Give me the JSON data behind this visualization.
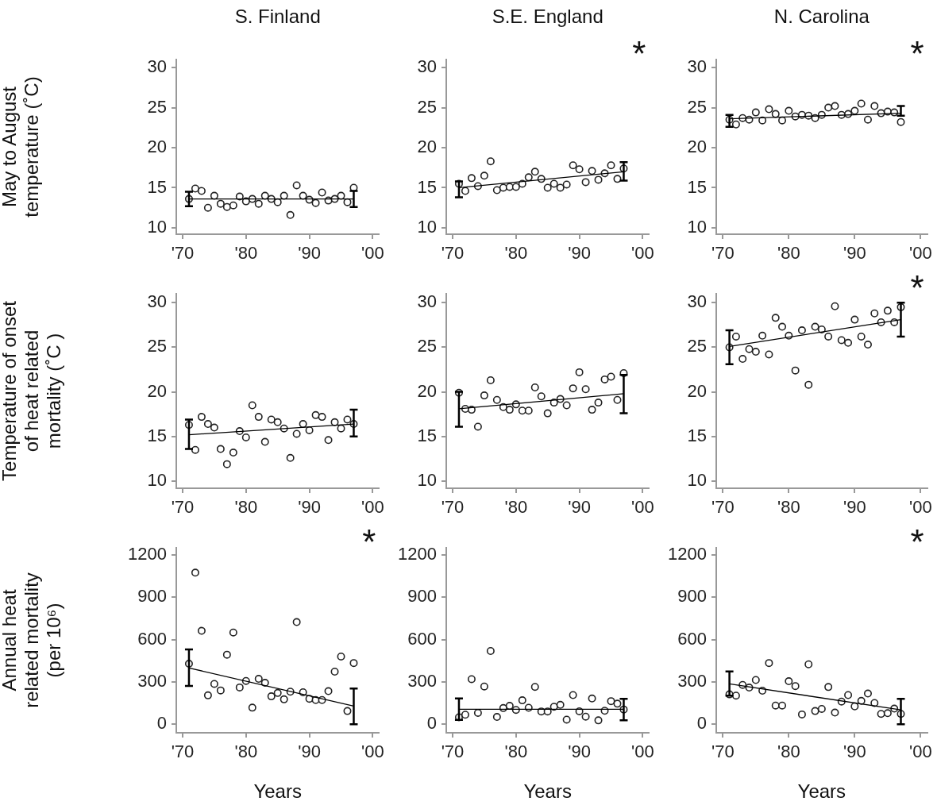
{
  "chart_data": [
    {
      "type": "scatter",
      "title": "S. Finland",
      "ylabel": "May to August\ntemperature (˚C)",
      "x": [
        1971,
        1972,
        1973,
        1974,
        1975,
        1976,
        1977,
        1978,
        1979,
        1980,
        1981,
        1982,
        1983,
        1984,
        1985,
        1986,
        1987,
        1988,
        1989,
        1990,
        1991,
        1992,
        1993,
        1994,
        1995,
        1996,
        1997
      ],
      "series": [
        {
          "type": "scatter",
          "color": "#222222",
          "marker": "circle",
          "values": [
            13.6,
            14.9,
            14.6,
            12.5,
            14.0,
            13.0,
            12.6,
            12.8,
            13.9,
            13.3,
            13.6,
            13.0,
            14.0,
            13.6,
            13.2,
            14.0,
            11.6,
            15.3,
            14.0,
            13.5,
            13.1,
            14.4,
            13.4,
            13.6,
            14.0,
            13.2,
            15.0
          ]
        },
        {
          "type": "line",
          "color": "#000000",
          "marker": "none",
          "values": [
            13.6,
            null,
            null,
            null,
            null,
            null,
            null,
            null,
            null,
            null,
            null,
            null,
            null,
            null,
            null,
            null,
            null,
            null,
            null,
            null,
            null,
            null,
            null,
            null,
            null,
            null,
            13.6
          ],
          "errors": [
            [
              12.7,
              14.5
            ],
            null,
            null,
            null,
            null,
            null,
            null,
            null,
            null,
            null,
            null,
            null,
            null,
            null,
            null,
            null,
            null,
            null,
            null,
            null,
            null,
            null,
            null,
            null,
            null,
            null,
            [
              12.6,
              14.6
            ]
          ]
        }
      ],
      "xlim": [
        1969,
        2001
      ],
      "xticks": [
        {
          "value": 1970,
          "label": "'70"
        },
        {
          "value": 1980,
          "label": "'80"
        },
        {
          "value": 1990,
          "label": "'90"
        },
        {
          "value": 2000,
          "label": "'00"
        }
      ],
      "ylim": [
        9.2,
        31
      ],
      "yticks": [
        10,
        15,
        20,
        25,
        30
      ]
    },
    {
      "type": "scatter",
      "title": "S.E. England",
      "annotations": [
        "*"
      ],
      "x": [
        1971,
        1972,
        1973,
        1974,
        1975,
        1976,
        1977,
        1978,
        1979,
        1980,
        1981,
        1982,
        1983,
        1984,
        1985,
        1986,
        1987,
        1988,
        1989,
        1990,
        1991,
        1992,
        1993,
        1994,
        1995,
        1996,
        1997
      ],
      "series": [
        {
          "type": "scatter",
          "color": "#222222",
          "marker": "circle",
          "values": [
            15.5,
            14.6,
            16.2,
            15.2,
            16.5,
            18.3,
            14.7,
            15.0,
            15.1,
            15.1,
            15.5,
            16.3,
            17.0,
            16.1,
            15.0,
            15.5,
            15.0,
            15.4,
            17.8,
            17.3,
            15.7,
            17.1,
            16.0,
            16.8,
            17.8,
            16.1,
            17.4
          ]
        },
        {
          "type": "line",
          "color": "#000000",
          "marker": "none",
          "values": [
            15.0,
            null,
            null,
            null,
            null,
            null,
            null,
            null,
            null,
            null,
            null,
            null,
            null,
            null,
            null,
            null,
            null,
            null,
            null,
            null,
            null,
            null,
            null,
            null,
            null,
            null,
            17.0
          ],
          "errors": [
            [
              13.8,
              15.8
            ],
            null,
            null,
            null,
            null,
            null,
            null,
            null,
            null,
            null,
            null,
            null,
            null,
            null,
            null,
            null,
            null,
            null,
            null,
            null,
            null,
            null,
            null,
            null,
            null,
            null,
            [
              15.9,
              18.2
            ]
          ]
        }
      ],
      "xlim": [
        1969,
        2001
      ],
      "xticks": [
        {
          "value": 1970,
          "label": "'70"
        },
        {
          "value": 1980,
          "label": "'80"
        },
        {
          "value": 1990,
          "label": "'90"
        },
        {
          "value": 2000,
          "label": "'00"
        }
      ],
      "ylim": [
        9.2,
        31
      ],
      "yticks": [
        10,
        15,
        20,
        25,
        30
      ]
    },
    {
      "type": "scatter",
      "title": "N. Carolina",
      "annotations": [
        "*"
      ],
      "x": [
        1971,
        1972,
        1973,
        1974,
        1975,
        1976,
        1977,
        1978,
        1979,
        1980,
        1981,
        1982,
        1983,
        1984,
        1985,
        1986,
        1987,
        1988,
        1989,
        1990,
        1991,
        1992,
        1993,
        1994,
        1995,
        1996,
        1997
      ],
      "series": [
        {
          "type": "scatter",
          "color": "#222222",
          "marker": "circle",
          "values": [
            23.5,
            22.9,
            23.7,
            23.5,
            24.4,
            23.4,
            24.8,
            24.2,
            23.4,
            24.6,
            23.9,
            24.1,
            24.0,
            23.7,
            24.1,
            25.0,
            25.2,
            24.1,
            24.2,
            24.6,
            25.5,
            23.5,
            25.2,
            24.3,
            24.5,
            24.4,
            23.2
          ]
        },
        {
          "type": "line",
          "color": "#000000",
          "marker": "none",
          "values": [
            23.6,
            null,
            null,
            null,
            null,
            null,
            null,
            null,
            null,
            null,
            null,
            null,
            null,
            null,
            null,
            null,
            null,
            null,
            null,
            null,
            null,
            null,
            null,
            null,
            null,
            null,
            24.3
          ],
          "errors": [
            [
              22.6,
              24.1
            ],
            null,
            null,
            null,
            null,
            null,
            null,
            null,
            null,
            null,
            null,
            null,
            null,
            null,
            null,
            null,
            null,
            null,
            null,
            null,
            null,
            null,
            null,
            null,
            null,
            null,
            [
              24.0,
              25.2
            ]
          ]
        }
      ],
      "xlim": [
        1969,
        2001
      ],
      "xticks": [
        {
          "value": 1970,
          "label": "'70"
        },
        {
          "value": 1980,
          "label": "'80"
        },
        {
          "value": 1990,
          "label": "'90"
        },
        {
          "value": 2000,
          "label": "'00"
        }
      ],
      "ylim": [
        9.2,
        31
      ],
      "yticks": [
        10,
        15,
        20,
        25,
        30
      ]
    },
    {
      "type": "scatter",
      "ylabel": "Temperature of onset\nof heat related\nmortality (˚C )",
      "x": [
        1971,
        1972,
        1973,
        1974,
        1975,
        1976,
        1977,
        1978,
        1979,
        1980,
        1981,
        1982,
        1983,
        1984,
        1985,
        1986,
        1987,
        1988,
        1989,
        1990,
        1991,
        1992,
        1993,
        1994,
        1995,
        1996,
        1997
      ],
      "series": [
        {
          "type": "scatter",
          "color": "#222222",
          "marker": "circle",
          "values": [
            16.3,
            13.5,
            17.2,
            16.4,
            16.0,
            13.6,
            11.9,
            13.2,
            15.6,
            14.9,
            18.5,
            17.2,
            14.4,
            16.9,
            16.6,
            15.9,
            12.6,
            15.3,
            16.4,
            15.7,
            17.4,
            17.2,
            14.6,
            16.6,
            15.9,
            16.9,
            16.4
          ]
        },
        {
          "type": "line",
          "color": "#000000",
          "marker": "none",
          "values": [
            15.2,
            null,
            null,
            null,
            null,
            null,
            null,
            null,
            null,
            null,
            null,
            null,
            null,
            null,
            null,
            null,
            null,
            null,
            null,
            null,
            null,
            null,
            null,
            null,
            null,
            null,
            16.4
          ],
          "errors": [
            [
              13.6,
              16.9
            ],
            null,
            null,
            null,
            null,
            null,
            null,
            null,
            null,
            null,
            null,
            null,
            null,
            null,
            null,
            null,
            null,
            null,
            null,
            null,
            null,
            null,
            null,
            null,
            null,
            null,
            [
              15.0,
              18.0
            ]
          ]
        }
      ],
      "xlim": [
        1969,
        2001
      ],
      "xticks": [
        {
          "value": 1970,
          "label": "'70"
        },
        {
          "value": 1980,
          "label": "'80"
        },
        {
          "value": 1990,
          "label": "'90"
        },
        {
          "value": 2000,
          "label": "'00"
        }
      ],
      "ylim": [
        9.2,
        31
      ],
      "yticks": [
        10,
        15,
        20,
        25,
        30
      ]
    },
    {
      "type": "scatter",
      "x": [
        1971,
        1972,
        1973,
        1974,
        1975,
        1976,
        1977,
        1978,
        1979,
        1980,
        1981,
        1982,
        1983,
        1984,
        1985,
        1986,
        1987,
        1988,
        1989,
        1990,
        1991,
        1992,
        1993,
        1994,
        1995,
        1996,
        1997
      ],
      "series": [
        {
          "type": "scatter",
          "color": "#222222",
          "marker": "circle",
          "values": [
            19.9,
            18.1,
            18.0,
            16.1,
            19.6,
            21.3,
            19.1,
            18.3,
            18.0,
            18.6,
            17.9,
            17.9,
            20.5,
            19.5,
            17.6,
            18.8,
            19.2,
            18.5,
            20.4,
            22.2,
            20.3,
            18.0,
            18.8,
            21.4,
            21.7,
            19.1,
            22.1
          ]
        },
        {
          "type": "line",
          "color": "#000000",
          "marker": "none",
          "values": [
            18.1,
            null,
            null,
            null,
            null,
            null,
            null,
            null,
            null,
            null,
            null,
            null,
            null,
            null,
            null,
            null,
            null,
            null,
            null,
            null,
            null,
            null,
            null,
            null,
            null,
            null,
            19.8
          ],
          "errors": [
            [
              16.1,
              20.0
            ],
            null,
            null,
            null,
            null,
            null,
            null,
            null,
            null,
            null,
            null,
            null,
            null,
            null,
            null,
            null,
            null,
            null,
            null,
            null,
            null,
            null,
            null,
            null,
            null,
            null,
            [
              17.6,
              21.9
            ]
          ]
        }
      ],
      "xlim": [
        1969,
        2001
      ],
      "xticks": [
        {
          "value": 1970,
          "label": "'70"
        },
        {
          "value": 1980,
          "label": "'80"
        },
        {
          "value": 1990,
          "label": "'90"
        },
        {
          "value": 2000,
          "label": "'00"
        }
      ],
      "ylim": [
        9.2,
        31
      ],
      "yticks": [
        10,
        15,
        20,
        25,
        30
      ]
    },
    {
      "type": "scatter",
      "annotations": [
        "*"
      ],
      "x": [
        1971,
        1972,
        1973,
        1974,
        1975,
        1976,
        1977,
        1978,
        1979,
        1980,
        1981,
        1982,
        1983,
        1984,
        1985,
        1986,
        1987,
        1988,
        1989,
        1990,
        1991,
        1992,
        1993,
        1994,
        1995,
        1996,
        1997
      ],
      "series": [
        {
          "type": "scatter",
          "color": "#222222",
          "marker": "circle",
          "values": [
            25.0,
            26.2,
            23.7,
            24.8,
            24.5,
            26.3,
            24.2,
            28.3,
            27.3,
            26.3,
            22.4,
            26.9,
            20.8,
            27.3,
            27.0,
            26.2,
            29.6,
            25.8,
            25.5,
            28.1,
            26.2,
            25.3,
            28.8,
            27.8,
            29.1,
            27.8,
            29.5
          ]
        },
        {
          "type": "line",
          "color": "#000000",
          "marker": "none",
          "values": [
            25.1,
            null,
            null,
            null,
            null,
            null,
            null,
            null,
            null,
            null,
            null,
            null,
            null,
            null,
            null,
            null,
            null,
            null,
            null,
            null,
            null,
            null,
            null,
            null,
            null,
            null,
            28.1
          ],
          "errors": [
            [
              23.1,
              26.9
            ],
            null,
            null,
            null,
            null,
            null,
            null,
            null,
            null,
            null,
            null,
            null,
            null,
            null,
            null,
            null,
            null,
            null,
            null,
            null,
            null,
            null,
            null,
            null,
            null,
            null,
            [
              26.2,
              30.0
            ]
          ]
        }
      ],
      "xlim": [
        1969,
        2001
      ],
      "xticks": [
        {
          "value": 1970,
          "label": "'70"
        },
        {
          "value": 1980,
          "label": "'80"
        },
        {
          "value": 1990,
          "label": "'90"
        },
        {
          "value": 2000,
          "label": "'00"
        }
      ],
      "ylim": [
        9.2,
        31
      ],
      "yticks": [
        10,
        15,
        20,
        25,
        30
      ]
    },
    {
      "type": "scatter",
      "annotations": [
        "*"
      ],
      "ylabel": "Annual heat\nrelated mortality\n(per 10⁶)",
      "xlabel": "Years",
      "x": [
        1971,
        1972,
        1973,
        1974,
        1975,
        1976,
        1977,
        1978,
        1979,
        1980,
        1981,
        1982,
        1983,
        1984,
        1985,
        1986,
        1987,
        1988,
        1989,
        1990,
        1991,
        1992,
        1993,
        1994,
        1995,
        1996,
        1997
      ],
      "series": [
        {
          "type": "scatter",
          "color": "#222222",
          "marker": "circle",
          "values": [
            429,
            1074,
            662,
            205,
            286,
            240,
            493,
            650,
            261,
            307,
            118,
            322,
            294,
            198,
            222,
            177,
            231,
            724,
            227,
            181,
            172,
            172,
            235,
            373,
            480,
            94,
            434
          ]
        },
        {
          "type": "line",
          "color": "#000000",
          "marker": "none",
          "values": [
            399,
            null,
            null,
            null,
            null,
            null,
            null,
            null,
            null,
            null,
            null,
            null,
            null,
            null,
            null,
            null,
            null,
            null,
            null,
            null,
            null,
            null,
            null,
            null,
            null,
            null,
            129
          ],
          "errors": [
            [
              272,
              530
            ],
            null,
            null,
            null,
            null,
            null,
            null,
            null,
            null,
            null,
            null,
            null,
            null,
            null,
            null,
            null,
            null,
            null,
            null,
            null,
            null,
            null,
            null,
            null,
            null,
            null,
            [
              0,
              253
            ]
          ]
        }
      ],
      "xlim": [
        1969,
        2001
      ],
      "xticks": [
        {
          "value": 1970,
          "label": "'70"
        },
        {
          "value": 1980,
          "label": "'80"
        },
        {
          "value": 1990,
          "label": "'90"
        },
        {
          "value": 2000,
          "label": "'00"
        }
      ],
      "ylim": [
        -60,
        1250
      ],
      "yticks": [
        0,
        300,
        600,
        900,
        1200
      ]
    },
    {
      "type": "scatter",
      "xlabel": "Years",
      "x": [
        1971,
        1972,
        1973,
        1974,
        1975,
        1976,
        1977,
        1978,
        1979,
        1980,
        1981,
        1982,
        1983,
        1984,
        1985,
        1986,
        1987,
        1988,
        1989,
        1990,
        1991,
        1992,
        1993,
        1994,
        1995,
        1996,
        1997
      ],
      "series": [
        {
          "type": "scatter",
          "color": "#222222",
          "marker": "circle",
          "values": [
            50,
            68,
            320,
            81,
            268,
            519,
            52,
            115,
            131,
            102,
            170,
            117,
            265,
            91,
            91,
            124,
            138,
            33,
            207,
            92,
            54,
            183,
            28,
            96,
            164,
            146,
            105
          ]
        },
        {
          "type": "line",
          "color": "#000000",
          "marker": "none",
          "values": [
            107,
            null,
            null,
            null,
            null,
            null,
            null,
            null,
            null,
            null,
            null,
            null,
            null,
            null,
            null,
            null,
            null,
            null,
            null,
            null,
            null,
            null,
            null,
            null,
            null,
            null,
            107
          ],
          "errors": [
            [
              31,
              183
            ],
            null,
            null,
            null,
            null,
            null,
            null,
            null,
            null,
            null,
            null,
            null,
            null,
            null,
            null,
            null,
            null,
            null,
            null,
            null,
            null,
            null,
            null,
            null,
            null,
            null,
            [
              28,
              181
            ]
          ]
        }
      ],
      "xlim": [
        1969,
        2001
      ],
      "xticks": [
        {
          "value": 1970,
          "label": "'70"
        },
        {
          "value": 1980,
          "label": "'80"
        },
        {
          "value": 1990,
          "label": "'90"
        },
        {
          "value": 2000,
          "label": "'00"
        }
      ],
      "ylim": [
        -60,
        1250
      ],
      "yticks": [
        0,
        300,
        600,
        900,
        1200
      ]
    },
    {
      "type": "scatter",
      "annotations": [
        "*"
      ],
      "xlabel": "Years",
      "x": [
        1971,
        1972,
        1973,
        1974,
        1975,
        1976,
        1977,
        1978,
        1979,
        1980,
        1981,
        1982,
        1983,
        1984,
        1985,
        1986,
        1987,
        1988,
        1989,
        1990,
        1991,
        1992,
        1993,
        1994,
        1995,
        1996,
        1997
      ],
      "series": [
        {
          "type": "scatter",
          "color": "#222222",
          "marker": "circle",
          "values": [
            212,
            203,
            279,
            260,
            314,
            238,
            434,
            133,
            133,
            305,
            271,
            70,
            425,
            94,
            109,
            264,
            83,
            161,
            207,
            127,
            166,
            218,
            151,
            74,
            79,
            111,
            74
          ]
        },
        {
          "type": "line",
          "color": "#000000",
          "marker": "none",
          "values": [
            286,
            null,
            null,
            null,
            null,
            null,
            null,
            null,
            null,
            null,
            null,
            null,
            null,
            null,
            null,
            null,
            null,
            null,
            null,
            null,
            null,
            null,
            null,
            null,
            null,
            null,
            102
          ],
          "errors": [
            [
              203,
              375
            ],
            null,
            null,
            null,
            null,
            null,
            null,
            null,
            null,
            null,
            null,
            null,
            null,
            null,
            null,
            null,
            null,
            null,
            null,
            null,
            null,
            null,
            null,
            null,
            null,
            null,
            [
              0,
              181
            ]
          ]
        }
      ],
      "xlim": [
        1969,
        2001
      ],
      "xticks": [
        {
          "value": 1970,
          "label": "'70"
        },
        {
          "value": 1980,
          "label": "'80"
        },
        {
          "value": 1990,
          "label": "'90"
        },
        {
          "value": 2000,
          "label": "'00"
        }
      ],
      "ylim": [
        -60,
        1250
      ],
      "yticks": [
        0,
        300,
        600,
        900,
        1200
      ]
    }
  ]
}
